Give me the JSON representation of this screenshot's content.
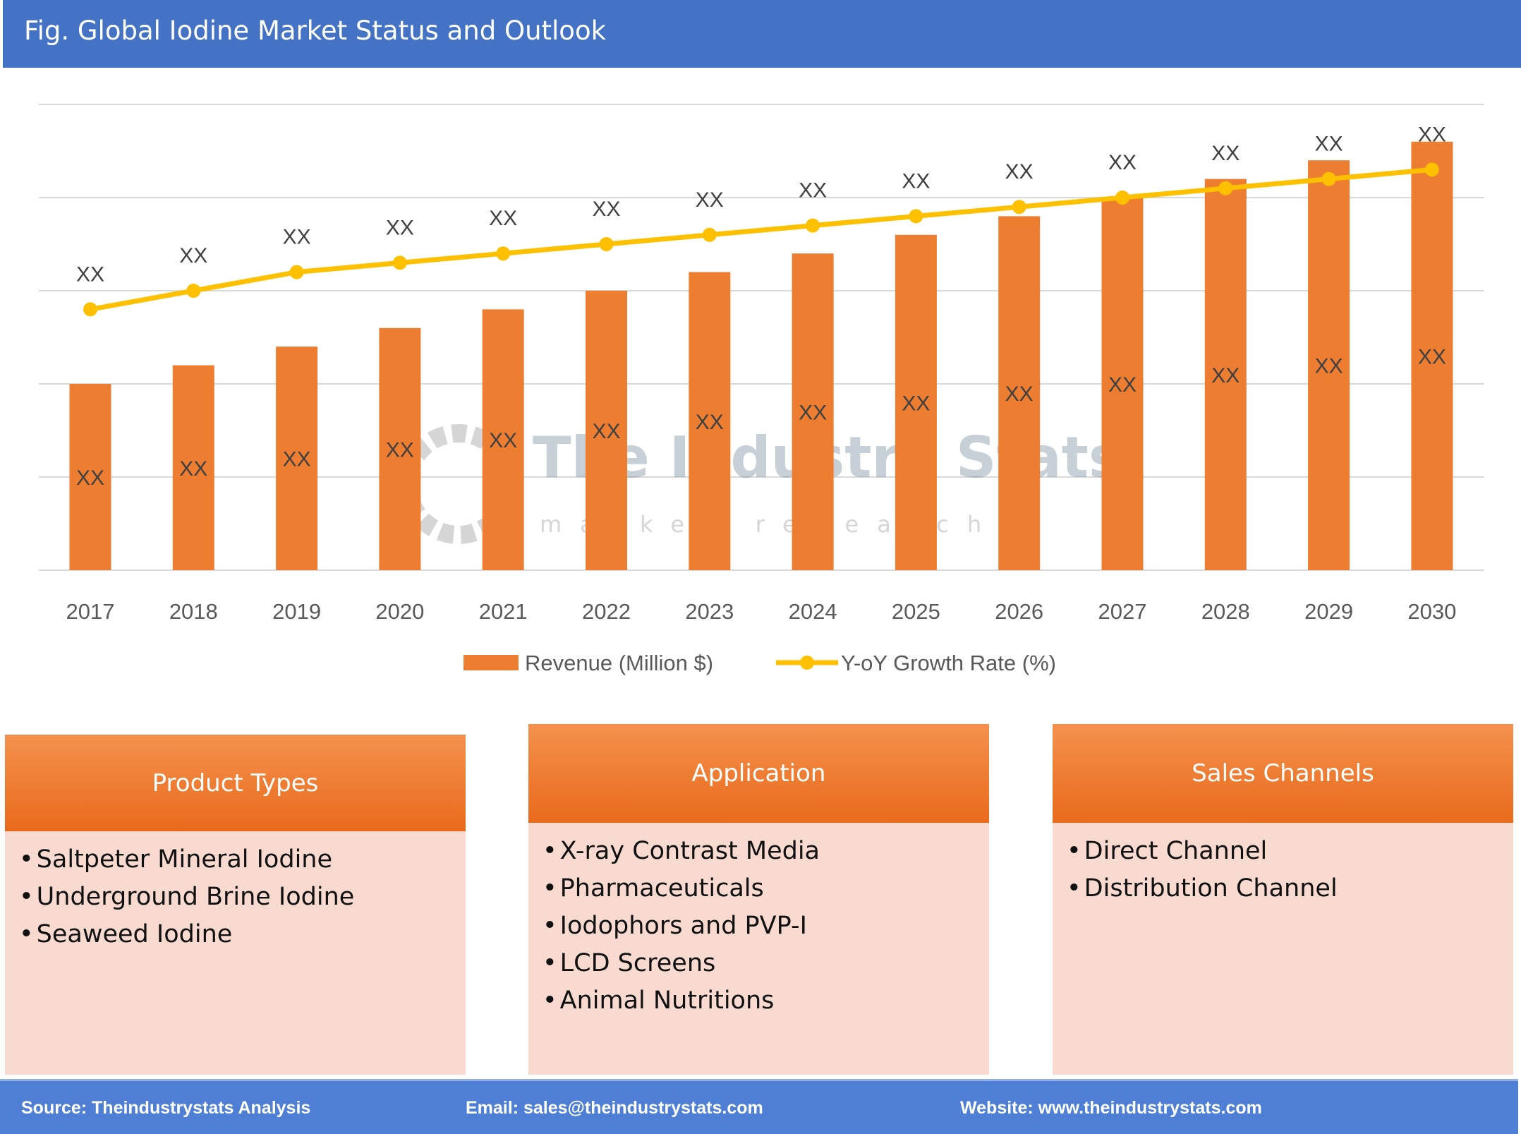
{
  "header": {
    "title": "Fig. Global Iodine Market Status and Outlook"
  },
  "chart_data": {
    "type": "bar+line",
    "categories": [
      "2017",
      "2018",
      "2019",
      "2020",
      "2021",
      "2022",
      "2023",
      "2024",
      "2025",
      "2026",
      "2027",
      "2028",
      "2029",
      "2030"
    ],
    "series": [
      {
        "name": "Revenue (Million $)",
        "type": "bar",
        "color": "#ED7D31",
        "values": [
          2.0,
          2.2,
          2.4,
          2.6,
          2.8,
          3.0,
          3.2,
          3.4,
          3.6,
          3.8,
          4.0,
          4.2,
          4.4,
          4.6
        ],
        "labels": [
          "XX",
          "XX",
          "XX",
          "XX",
          "XX",
          "XX",
          "XX",
          "XX",
          "XX",
          "XX",
          "XX",
          "XX",
          "XX",
          "XX"
        ]
      },
      {
        "name": "Y-oY Growth Rate (%)",
        "type": "line",
        "color": "#FFC000",
        "values": [
          2.8,
          3.0,
          3.2,
          3.3,
          3.4,
          3.5,
          3.6,
          3.7,
          3.8,
          3.9,
          4.0,
          4.1,
          4.2,
          4.3
        ],
        "labels": [
          "XX",
          "XX",
          "XX",
          "XX",
          "XX",
          "XX",
          "XX",
          "XX",
          "XX",
          "XX",
          "XX",
          "XX",
          "XX",
          "XX"
        ]
      }
    ],
    "ylim": [
      0,
      5
    ],
    "grid": true,
    "y_axis_labels": "hidden",
    "legend": "bottom",
    "watermark": {
      "title": "The Industry Stats",
      "subtitle": "market research"
    }
  },
  "boxes": [
    {
      "title": "Product Types",
      "items": [
        "Saltpeter Mineral Iodine",
        "Underground Brine Iodine",
        "Seaweed Iodine"
      ]
    },
    {
      "title": "Application",
      "items": [
        "X-ray Contrast Media",
        "Pharmaceuticals",
        "Iodophors and PVP-I",
        "LCD Screens",
        "Animal Nutritions"
      ]
    },
    {
      "title": "Sales Channels",
      "items": [
        "Direct Channel",
        "Distribution Channel"
      ]
    }
  ],
  "footer": {
    "source": "Source: Theindustrystats Analysis",
    "email": "Email: sales@theindustrystats.com",
    "website": "Website: www.theindustrystats.com"
  }
}
